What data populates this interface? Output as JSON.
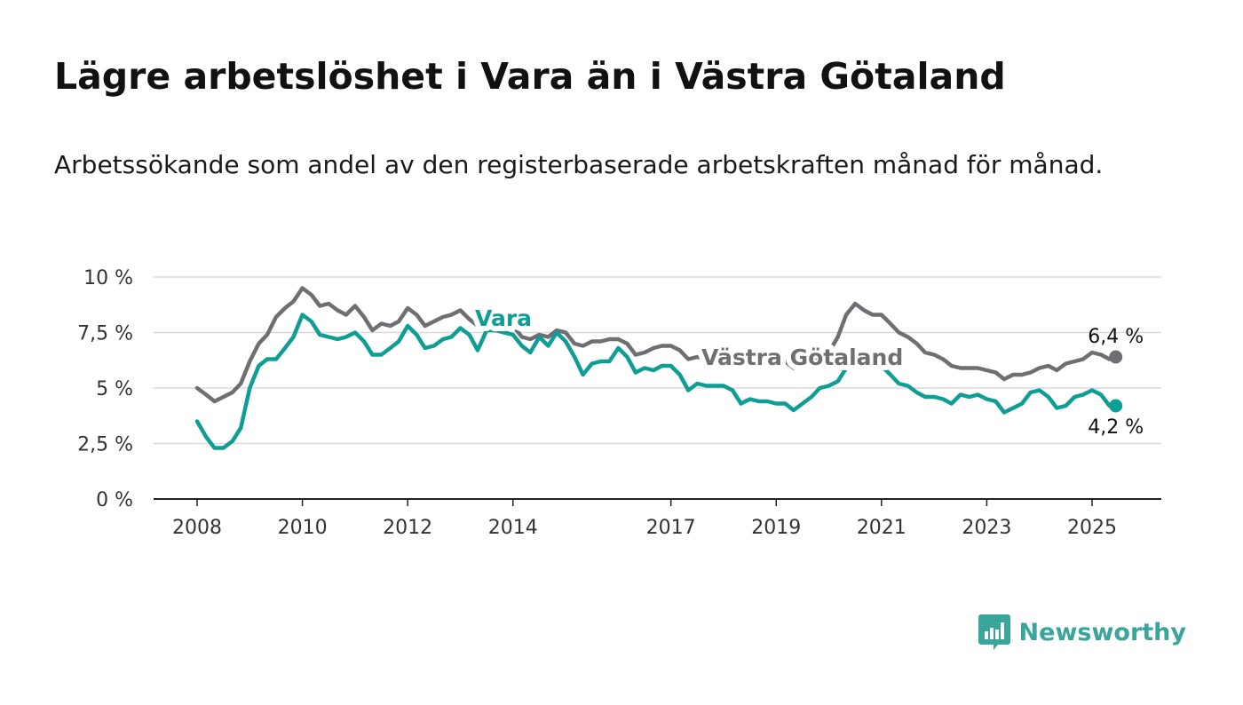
{
  "title": "Lägre arbetslöshet i Vara än i Västra Götaland",
  "subtitle": "Arbetssökande som andel av den registerbaserade arbetskraften månad för månad.",
  "brand": {
    "name": "Newsworthy"
  },
  "colors": {
    "vara": "#0f9e93",
    "vastra_gotaland": "#6f6e73",
    "grid": "#d9d9d9",
    "axis": "#222222",
    "brand": "#3aa59a"
  },
  "chart_data": {
    "type": "line",
    "title": "Lägre arbetslöshet i Vara än i Västra Götaland",
    "subtitle": "Arbetssökande som andel av den registerbaserade arbetskraften månad för månad.",
    "xlabel": "",
    "ylabel": "",
    "xlim": [
      2008,
      2025.5
    ],
    "ylim": [
      0,
      10
    ],
    "yticks": [
      0,
      2.5,
      5,
      7.5,
      10
    ],
    "ytick_labels": [
      "0 %",
      "2,5 %",
      "5 %",
      "7,5 %",
      "10 %"
    ],
    "xticks": [
      2008,
      2010,
      2012,
      2014,
      2017,
      2019,
      2021,
      2023,
      2025
    ],
    "xtick_labels": [
      "2008",
      "2010",
      "2012",
      "2014",
      "2017",
      "2019",
      "2021",
      "2023",
      "2025"
    ],
    "grid": true,
    "legend": "none",
    "series": [
      {
        "name": "Västra Götaland",
        "label": "Västra Götaland",
        "end_label": "6,4 %",
        "points": [
          [
            2008.0,
            5.0
          ],
          [
            2008.17,
            4.7
          ],
          [
            2008.33,
            4.4
          ],
          [
            2008.5,
            4.6
          ],
          [
            2008.67,
            4.8
          ],
          [
            2008.83,
            5.2
          ],
          [
            2009.0,
            6.2
          ],
          [
            2009.17,
            7.0
          ],
          [
            2009.33,
            7.4
          ],
          [
            2009.5,
            8.2
          ],
          [
            2009.67,
            8.6
          ],
          [
            2009.83,
            8.9
          ],
          [
            2010.0,
            9.5
          ],
          [
            2010.17,
            9.2
          ],
          [
            2010.33,
            8.7
          ],
          [
            2010.5,
            8.8
          ],
          [
            2010.67,
            8.5
          ],
          [
            2010.83,
            8.3
          ],
          [
            2011.0,
            8.7
          ],
          [
            2011.17,
            8.2
          ],
          [
            2011.33,
            7.6
          ],
          [
            2011.5,
            7.9
          ],
          [
            2011.67,
            7.8
          ],
          [
            2011.83,
            8.0
          ],
          [
            2012.0,
            8.6
          ],
          [
            2012.17,
            8.3
          ],
          [
            2012.33,
            7.8
          ],
          [
            2012.5,
            8.0
          ],
          [
            2012.67,
            8.2
          ],
          [
            2012.83,
            8.3
          ],
          [
            2013.0,
            8.5
          ],
          [
            2013.17,
            8.1
          ],
          [
            2013.33,
            7.8
          ],
          [
            2013.5,
            7.8
          ],
          [
            2013.67,
            7.6
          ],
          [
            2013.83,
            7.5
          ],
          [
            2014.0,
            7.8
          ],
          [
            2014.17,
            7.3
          ],
          [
            2014.33,
            7.2
          ],
          [
            2014.5,
            7.4
          ],
          [
            2014.67,
            7.3
          ],
          [
            2014.83,
            7.6
          ],
          [
            2015.0,
            7.5
          ],
          [
            2015.17,
            7.0
          ],
          [
            2015.33,
            6.9
          ],
          [
            2015.5,
            7.1
          ],
          [
            2015.67,
            7.1
          ],
          [
            2015.83,
            7.2
          ],
          [
            2016.0,
            7.2
          ],
          [
            2016.17,
            7.0
          ],
          [
            2016.33,
            6.5
          ],
          [
            2016.5,
            6.6
          ],
          [
            2016.67,
            6.8
          ],
          [
            2016.83,
            6.9
          ],
          [
            2017.0,
            6.9
          ],
          [
            2017.17,
            6.7
          ],
          [
            2017.33,
            6.3
          ],
          [
            2017.5,
            6.4
          ],
          [
            2017.67,
            6.3
          ],
          [
            2017.83,
            6.4
          ],
          [
            2018.0,
            6.5
          ],
          [
            2018.17,
            6.3
          ],
          [
            2018.33,
            6.0
          ],
          [
            2018.5,
            6.1
          ],
          [
            2018.67,
            6.1
          ],
          [
            2018.83,
            6.2
          ],
          [
            2019.0,
            6.3
          ],
          [
            2019.17,
            6.2
          ],
          [
            2019.33,
            5.9
          ],
          [
            2019.5,
            6.0
          ],
          [
            2019.67,
            6.1
          ],
          [
            2019.83,
            6.3
          ],
          [
            2020.0,
            6.6
          ],
          [
            2020.17,
            7.3
          ],
          [
            2020.33,
            8.3
          ],
          [
            2020.5,
            8.8
          ],
          [
            2020.67,
            8.5
          ],
          [
            2020.83,
            8.3
          ],
          [
            2021.0,
            8.3
          ],
          [
            2021.17,
            7.9
          ],
          [
            2021.33,
            7.5
          ],
          [
            2021.5,
            7.3
          ],
          [
            2021.67,
            7.0
          ],
          [
            2021.83,
            6.6
          ],
          [
            2022.0,
            6.5
          ],
          [
            2022.17,
            6.3
          ],
          [
            2022.33,
            6.0
          ],
          [
            2022.5,
            5.9
          ],
          [
            2022.67,
            5.9
          ],
          [
            2022.83,
            5.9
          ],
          [
            2023.0,
            5.8
          ],
          [
            2023.17,
            5.7
          ],
          [
            2023.33,
            5.4
          ],
          [
            2023.5,
            5.6
          ],
          [
            2023.67,
            5.6
          ],
          [
            2023.83,
            5.7
          ],
          [
            2024.0,
            5.9
          ],
          [
            2024.17,
            6.0
          ],
          [
            2024.33,
            5.8
          ],
          [
            2024.5,
            6.1
          ],
          [
            2024.67,
            6.2
          ],
          [
            2024.83,
            6.3
          ],
          [
            2025.0,
            6.6
          ],
          [
            2025.17,
            6.5
          ],
          [
            2025.33,
            6.3
          ],
          [
            2025.45,
            6.4
          ]
        ]
      },
      {
        "name": "Vara",
        "label": "Vara",
        "end_label": "4,2 %",
        "points": [
          [
            2008.0,
            3.5
          ],
          [
            2008.17,
            2.8
          ],
          [
            2008.33,
            2.3
          ],
          [
            2008.5,
            2.3
          ],
          [
            2008.67,
            2.6
          ],
          [
            2008.83,
            3.2
          ],
          [
            2009.0,
            5.0
          ],
          [
            2009.17,
            6.0
          ],
          [
            2009.33,
            6.3
          ],
          [
            2009.5,
            6.3
          ],
          [
            2009.67,
            6.8
          ],
          [
            2009.83,
            7.3
          ],
          [
            2010.0,
            8.3
          ],
          [
            2010.17,
            8.0
          ],
          [
            2010.33,
            7.4
          ],
          [
            2010.5,
            7.3
          ],
          [
            2010.67,
            7.2
          ],
          [
            2010.83,
            7.3
          ],
          [
            2011.0,
            7.5
          ],
          [
            2011.17,
            7.1
          ],
          [
            2011.33,
            6.5
          ],
          [
            2011.5,
            6.5
          ],
          [
            2011.67,
            6.8
          ],
          [
            2011.83,
            7.1
          ],
          [
            2012.0,
            7.8
          ],
          [
            2012.17,
            7.4
          ],
          [
            2012.33,
            6.8
          ],
          [
            2012.5,
            6.9
          ],
          [
            2012.67,
            7.2
          ],
          [
            2012.83,
            7.3
          ],
          [
            2013.0,
            7.7
          ],
          [
            2013.17,
            7.4
          ],
          [
            2013.33,
            6.7
          ],
          [
            2013.5,
            7.6
          ],
          [
            2013.67,
            7.6
          ],
          [
            2013.83,
            7.5
          ],
          [
            2014.0,
            7.4
          ],
          [
            2014.17,
            6.9
          ],
          [
            2014.33,
            6.6
          ],
          [
            2014.5,
            7.3
          ],
          [
            2014.67,
            6.9
          ],
          [
            2014.83,
            7.5
          ],
          [
            2015.0,
            7.1
          ],
          [
            2015.17,
            6.4
          ],
          [
            2015.33,
            5.6
          ],
          [
            2015.5,
            6.1
          ],
          [
            2015.67,
            6.2
          ],
          [
            2015.83,
            6.2
          ],
          [
            2016.0,
            6.8
          ],
          [
            2016.17,
            6.4
          ],
          [
            2016.33,
            5.7
          ],
          [
            2016.5,
            5.9
          ],
          [
            2016.67,
            5.8
          ],
          [
            2016.83,
            6.0
          ],
          [
            2017.0,
            6.0
          ],
          [
            2017.17,
            5.6
          ],
          [
            2017.33,
            4.9
          ],
          [
            2017.5,
            5.2
          ],
          [
            2017.67,
            5.1
          ],
          [
            2017.83,
            5.1
          ],
          [
            2018.0,
            5.1
          ],
          [
            2018.17,
            4.9
          ],
          [
            2018.33,
            4.3
          ],
          [
            2018.5,
            4.5
          ],
          [
            2018.67,
            4.4
          ],
          [
            2018.83,
            4.4
          ],
          [
            2019.0,
            4.3
          ],
          [
            2019.17,
            4.3
          ],
          [
            2019.33,
            4.0
          ],
          [
            2019.5,
            4.3
          ],
          [
            2019.67,
            4.6
          ],
          [
            2019.83,
            5.0
          ],
          [
            2020.0,
            5.1
          ],
          [
            2020.17,
            5.3
          ],
          [
            2020.33,
            5.9
          ],
          [
            2020.5,
            6.1
          ],
          [
            2020.67,
            6.1
          ],
          [
            2020.83,
            6.1
          ],
          [
            2021.0,
            6.0
          ],
          [
            2021.17,
            5.6
          ],
          [
            2021.33,
            5.2
          ],
          [
            2021.5,
            5.1
          ],
          [
            2021.67,
            4.8
          ],
          [
            2021.83,
            4.6
          ],
          [
            2022.0,
            4.6
          ],
          [
            2022.17,
            4.5
          ],
          [
            2022.33,
            4.3
          ],
          [
            2022.5,
            4.7
          ],
          [
            2022.67,
            4.6
          ],
          [
            2022.83,
            4.7
          ],
          [
            2023.0,
            4.5
          ],
          [
            2023.17,
            4.4
          ],
          [
            2023.33,
            3.9
          ],
          [
            2023.5,
            4.1
          ],
          [
            2023.67,
            4.3
          ],
          [
            2023.83,
            4.8
          ],
          [
            2024.0,
            4.9
          ],
          [
            2024.17,
            4.6
          ],
          [
            2024.33,
            4.1
          ],
          [
            2024.5,
            4.2
          ],
          [
            2024.67,
            4.6
          ],
          [
            2024.83,
            4.7
          ],
          [
            2025.0,
            4.9
          ],
          [
            2025.17,
            4.7
          ],
          [
            2025.33,
            4.2
          ],
          [
            2025.45,
            4.2
          ]
        ]
      }
    ]
  }
}
